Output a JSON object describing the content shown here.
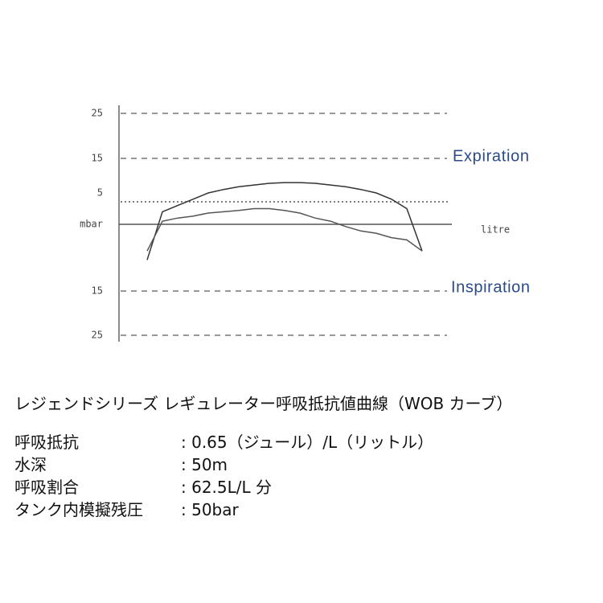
{
  "chart_data": {
    "type": "line",
    "categories": [
      null,
      null,
      null,
      null,
      null,
      null,
      null,
      null,
      null,
      null,
      null,
      null,
      null,
      null,
      null,
      null,
      null,
      null,
      null
    ],
    "x_label": "litre",
    "ylim": [
      -25,
      25
    ],
    "yticks": [
      {
        "value": 25,
        "label": "25"
      },
      {
        "value": 15,
        "label": "15"
      },
      {
        "value": 5,
        "label": "5"
      },
      {
        "value": 0,
        "label": "mbar"
      },
      {
        "value": -15,
        "label": "15"
      },
      {
        "value": -25,
        "label": "25"
      }
    ],
    "annotations": [
      "Expiration",
      "Inspiration"
    ],
    "series": [
      {
        "color": "#333333",
        "values": [
          -8,
          2,
          3,
          4,
          5,
          6,
          6.8,
          7.3,
          7.8,
          8,
          8,
          7.8,
          7.3,
          6.8,
          6,
          5,
          4,
          2.5,
          -6
        ]
      },
      {
        "color": "#555555",
        "values": [
          -6,
          0.5,
          1,
          1.3,
          1.8,
          2,
          2.2,
          2.5,
          2.5,
          2.2,
          1.8,
          1,
          0.5,
          -0.5,
          -1.5,
          -2,
          -3,
          -3.5,
          -6
        ]
      }
    ]
  },
  "spec": {
    "title": "レジェンドシリーズ レギュレーター呼吸抵抗値曲線（WOB カーブ）",
    "rows": [
      [
        "呼吸抵抗",
        ": 0.65（ジュール）/L（リットル）"
      ],
      [
        "水深",
        ": 50m"
      ],
      [
        "呼吸割合",
        ": 62.5L/L 分"
      ],
      [
        "タンク内模擬残圧",
        ": 50bar"
      ]
    ]
  }
}
